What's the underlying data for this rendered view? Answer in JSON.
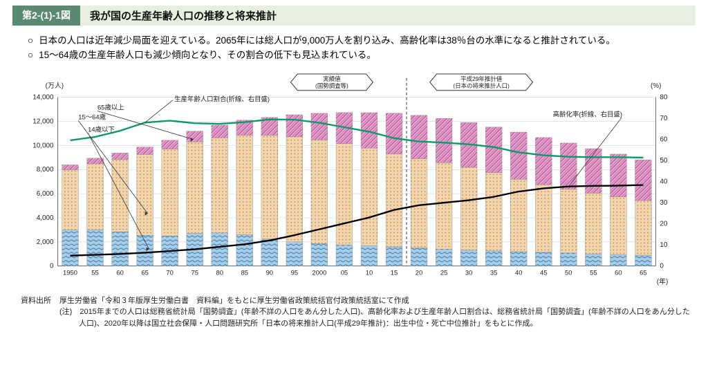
{
  "header": {
    "tag": "第2-(1)-1図",
    "title": "我が国の生産年齢人口の推移と将来推計"
  },
  "bullets": [
    "日本の人口は近年減少局面を迎えている。2065年には総人口が9,000万人を割り込み、高齢化率は38％台の水準になると推計されている。",
    "15〜64歳の生産年齢人口も減少傾向となり、その割合の低下も見込まれている。"
  ],
  "chart": {
    "left_unit": "(万人)",
    "right_unit": "(%)",
    "ylim_left": [
      0,
      14000
    ],
    "ytick_left": 2000,
    "ylim_right": [
      0,
      80
    ],
    "ytick_right": 10,
    "years": [
      "1950",
      "55",
      "60",
      "65",
      "70",
      "75",
      "80",
      "85",
      "90",
      "95",
      "2000",
      "05",
      "10",
      "15",
      "20",
      "25",
      "30",
      "35",
      "40",
      "45",
      "50",
      "55",
      "60",
      "65"
    ],
    "x_axis_label": "(年)",
    "legend": {
      "age65": "65歳以上",
      "age1564": "15〜64歳",
      "age14": "14歳以下",
      "wap_ratio": "生産年齢人口割合(折線、右目盛)",
      "aging_ratio": "高齢化率(折線、右目盛)"
    },
    "callouts": {
      "actual": "実績値\n(国勢調査等)",
      "forecast": "平成29年推計値\n(日本の将来推計人口)"
    },
    "divider_index": 14,
    "series": {
      "age0_14": [
        2980,
        3010,
        2840,
        2550,
        2500,
        2720,
        2750,
        2600,
        2250,
        2000,
        1850,
        1750,
        1680,
        1590,
        1500,
        1400,
        1320,
        1250,
        1190,
        1140,
        1080,
        1010,
        950,
        900
      ],
      "age15_64": [
        5000,
        5470,
        6000,
        6700,
        7200,
        7580,
        7880,
        8250,
        8590,
        8720,
        8620,
        8400,
        8100,
        7700,
        7400,
        7170,
        6870,
        6500,
        6000,
        5600,
        5280,
        5030,
        4790,
        4530
      ],
      "age65": [
        410,
        470,
        530,
        620,
        730,
        890,
        1060,
        1250,
        1490,
        1830,
        2200,
        2580,
        2940,
        3390,
        3600,
        3680,
        3720,
        3780,
        3920,
        3920,
        3840,
        3700,
        3540,
        3380
      ],
      "wap_ratio": [
        59.6,
        61.2,
        64.1,
        68.0,
        68.9,
        67.7,
        67.4,
        68.2,
        69.5,
        69.4,
        67.9,
        65.8,
        63.7,
        60.6,
        59.0,
        58.5,
        57.7,
        56.4,
        53.9,
        52.5,
        51.8,
        51.6,
        51.6,
        51.4
      ],
      "aging": [
        4.9,
        5.3,
        5.7,
        6.3,
        7.1,
        7.9,
        9.1,
        10.3,
        12.1,
        14.6,
        17.4,
        20.2,
        23.0,
        26.6,
        28.8,
        30.0,
        31.2,
        32.8,
        35.3,
        36.8,
        37.7,
        38.0,
        38.1,
        38.4
      ]
    },
    "colors": {
      "age65_fill": "#e8a7d0",
      "age65_hatch": "#b04f8f",
      "age1564_fill": "#f0d6b0",
      "age1564_dot": "#d08030",
      "age14_fill": "#a8cde8",
      "age14_wave": "#3a7aa8",
      "wap_line": "#0a9a6a",
      "aging_line": "#000000",
      "grid": "#c8c8c8",
      "axis": "#666666",
      "divider": "#555555",
      "text": "#222222",
      "bg": "#ffffff"
    },
    "line_width": {
      "wap": 2.4,
      "aging": 2.4,
      "grid": 0.5
    }
  },
  "source": {
    "label1": "資料出所",
    "text1": "厚生労働省「令和３年版厚生労働白書　資料編」をもとに厚生労働省政策統括官付政策統括室にて作成",
    "label2": "(注) ",
    "text2": "2015年までの人口は総務省統計局「国勢調査」(年齢不詳の人口をあん分した人口)、高齢化率および生産年齢人口割合は、総務省統計局「国勢調査」(年齢不詳の人口をあん分した人口)、2020年以降は国立社会保障・人口問題研究所「日本の将来推計人口(平成29年推計)：出生中位・死亡中位推計」をもとに作成。"
  }
}
